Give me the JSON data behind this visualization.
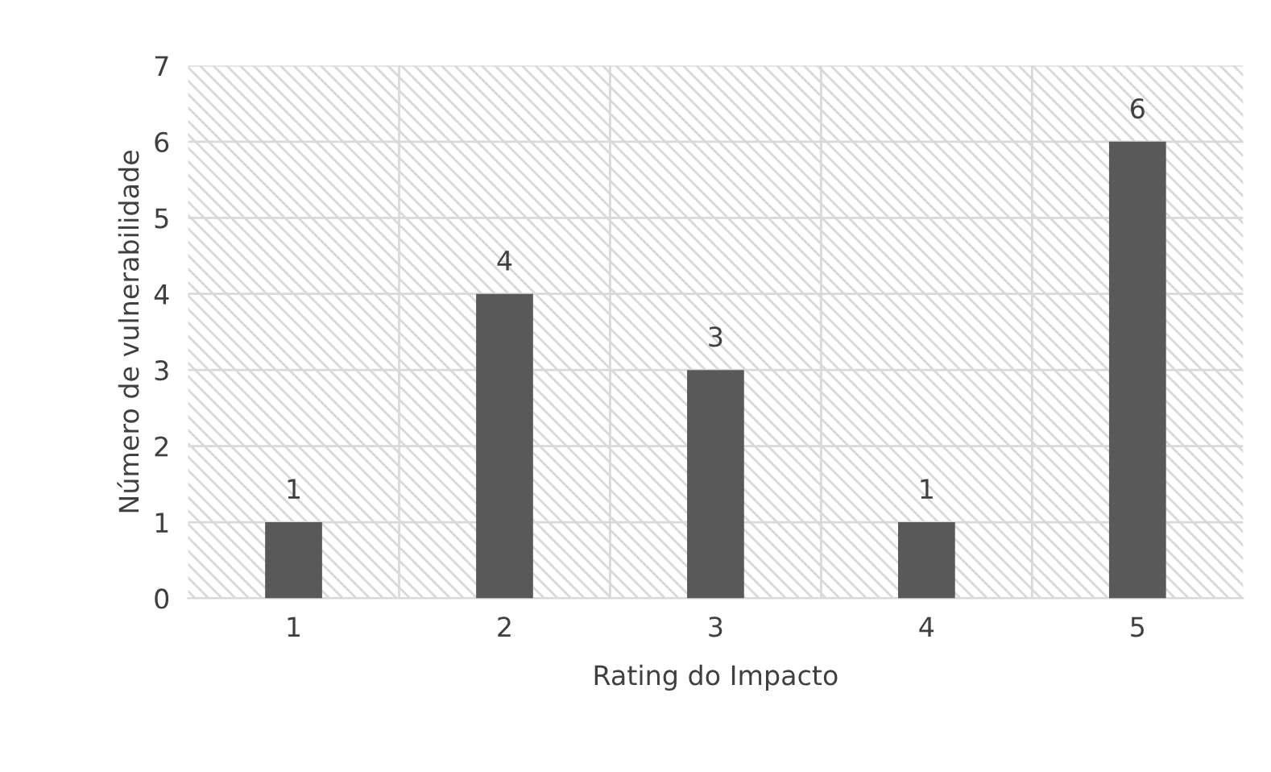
{
  "chart_data": {
    "type": "bar",
    "xlabel": "Rating do Impacto",
    "ylabel": "Número de vulnerabilidade",
    "categories": [
      "1",
      "2",
      "3",
      "4",
      "5"
    ],
    "values": [
      1,
      4,
      3,
      1,
      6
    ],
    "color": "#595959",
    "ylim": [
      0,
      7
    ],
    "yticks": [
      0,
      1,
      2,
      3,
      4,
      5,
      6,
      7
    ],
    "grid": true,
    "data_labels": true
  }
}
